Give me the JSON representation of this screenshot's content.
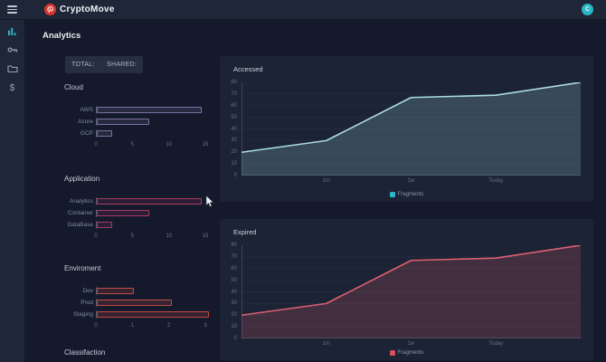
{
  "topbar": {
    "title": "CryptoMove",
    "avatar_letter": "C"
  },
  "sidebar": {
    "items": [
      {
        "name": "analytics",
        "icon": "bar-chart-icon",
        "active": true
      },
      {
        "name": "keys",
        "icon": "key-icon",
        "active": false
      },
      {
        "name": "folders",
        "icon": "folder-icon",
        "active": false
      },
      {
        "name": "billing",
        "icon": "dollar-icon",
        "active": false
      }
    ],
    "dollar_glyph": "$"
  },
  "main": {
    "heading": "Analytics",
    "filter_buttons": [
      {
        "label": "TOTAL:"
      },
      {
        "label": "SHARED:"
      }
    ],
    "next_section_label": "Classifaction"
  },
  "colors": {
    "brand_red": "#d8382e",
    "accent_teal": "#2fb5c8",
    "topbar_bg": "#1e2637",
    "page_bg": "#141a2b",
    "card_bg": "#1b2334",
    "cloud_bar": "#7b70a1",
    "application_bar": "#a73a62",
    "environment_bar": "#c14b45",
    "accessed_line": "#a9dde1",
    "expired_line": "#dd5f72"
  },
  "chart_data": [
    {
      "type": "bar",
      "orientation": "horizontal",
      "title": "Cloud",
      "categories": [
        "AWS",
        "Azure",
        "GCP"
      ],
      "values": [
        14,
        7,
        2
      ],
      "xlim": [
        0,
        15
      ],
      "xticks": [
        0,
        5,
        10,
        15
      ],
      "bar_border_color": "#7b70a1",
      "bar_fill_color": "rgba(123,112,161,0.18)"
    },
    {
      "type": "bar",
      "orientation": "horizontal",
      "title": "Application",
      "categories": [
        "Analytics",
        "Container",
        "DataBase"
      ],
      "values": [
        14,
        7,
        2
      ],
      "xlim": [
        0,
        15
      ],
      "xticks": [
        0,
        5,
        10,
        15
      ],
      "bar_border_color": "#a73a62",
      "bar_fill_color": "rgba(167,58,98,0.16)"
    },
    {
      "type": "bar",
      "orientation": "horizontal",
      "title": "Enviroment",
      "categories": [
        "Dev",
        "Prod",
        "Staging"
      ],
      "values": [
        1,
        2,
        3
      ],
      "xlim": [
        0,
        3
      ],
      "xticks": [
        0,
        1,
        2,
        3
      ],
      "bar_border_color": "#c14b45",
      "bar_fill_color": "rgba(193,75,69,0.20)"
    },
    {
      "type": "area",
      "title": "Accessed",
      "values": [
        20,
        30,
        67,
        69,
        80
      ],
      "x_tick_labels": [
        "1m",
        "1w",
        "Today"
      ],
      "x_tick_positions": [
        1,
        2,
        3
      ],
      "ylim": [
        0,
        80
      ],
      "yticks": [
        0,
        10,
        20,
        30,
        40,
        50,
        60,
        70,
        80
      ],
      "legend": "Fragments",
      "legend_position": "bottom",
      "grid": true,
      "line_color": "#a9dde1",
      "fill_color": "rgba(169,221,225,0.20)",
      "legend_color": "#2fb5c8"
    },
    {
      "type": "area",
      "title": "Expired",
      "values": [
        20,
        30,
        67,
        69,
        80
      ],
      "x_tick_labels": [
        "1m",
        "1w",
        "Today"
      ],
      "x_tick_positions": [
        1,
        2,
        3
      ],
      "ylim": [
        0,
        80
      ],
      "yticks": [
        0,
        10,
        20,
        30,
        40,
        50,
        60,
        70,
        80
      ],
      "legend": "Fragments",
      "legend_position": "bottom",
      "grid": true,
      "line_color": "#dd5f72",
      "fill_color": "rgba(221,95,114,0.20)",
      "legend_color": "#d94f5c"
    }
  ]
}
